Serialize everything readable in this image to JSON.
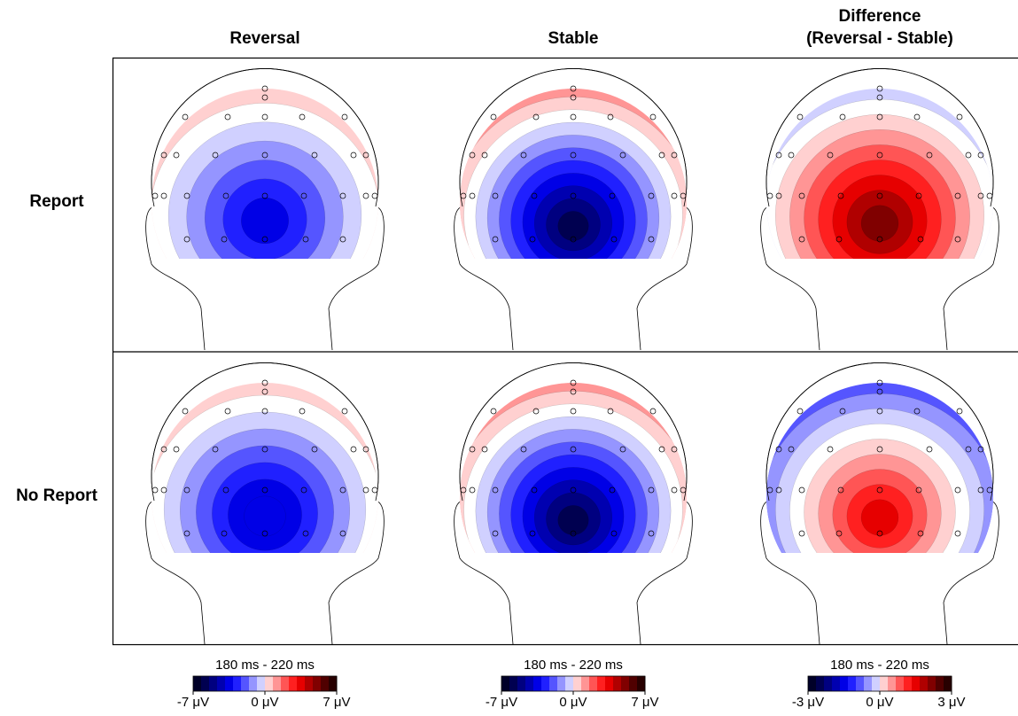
{
  "columns": [
    {
      "lines": [
        "Reversal"
      ]
    },
    {
      "lines": [
        "Stable"
      ]
    },
    {
      "lines": [
        "Difference",
        "(Reversal - Stable)"
      ]
    }
  ],
  "rows": [
    "Report",
    "No Report"
  ],
  "colorbars": [
    {
      "title": "180 ms - 220 ms",
      "lim": [
        -7,
        7
      ],
      "ticks": [
        {
          "value": -7,
          "label": "-7 μV"
        },
        {
          "value": 0,
          "label": "0 μV"
        },
        {
          "value": 7,
          "label": "7 μV"
        }
      ]
    },
    {
      "title": "180 ms - 220 ms",
      "lim": [
        -7,
        7
      ],
      "ticks": [
        {
          "value": -7,
          "label": "-7 μV"
        },
        {
          "value": 0,
          "label": "0 μV"
        },
        {
          "value": 7,
          "label": "7 μV"
        }
      ]
    },
    {
      "title": "180 ms - 220 ms",
      "lim": [
        -3,
        3
      ],
      "ticks": [
        {
          "value": -3,
          "label": "-3 μV"
        },
        {
          "value": 0,
          "label": "0 μV"
        },
        {
          "value": 3,
          "label": "3 μV"
        }
      ]
    }
  ],
  "colors": [
    "#000028",
    "#000050",
    "#000080",
    "#0000b0",
    "#0000e6",
    "#2020ff",
    "#5555ff",
    "#9595ff",
    "#d0d0ff",
    "#ffd0d0",
    "#ff9595",
    "#ff5555",
    "#ff2020",
    "#e60000",
    "#b00000",
    "#800000",
    "#500000",
    "#280000"
  ]
}
